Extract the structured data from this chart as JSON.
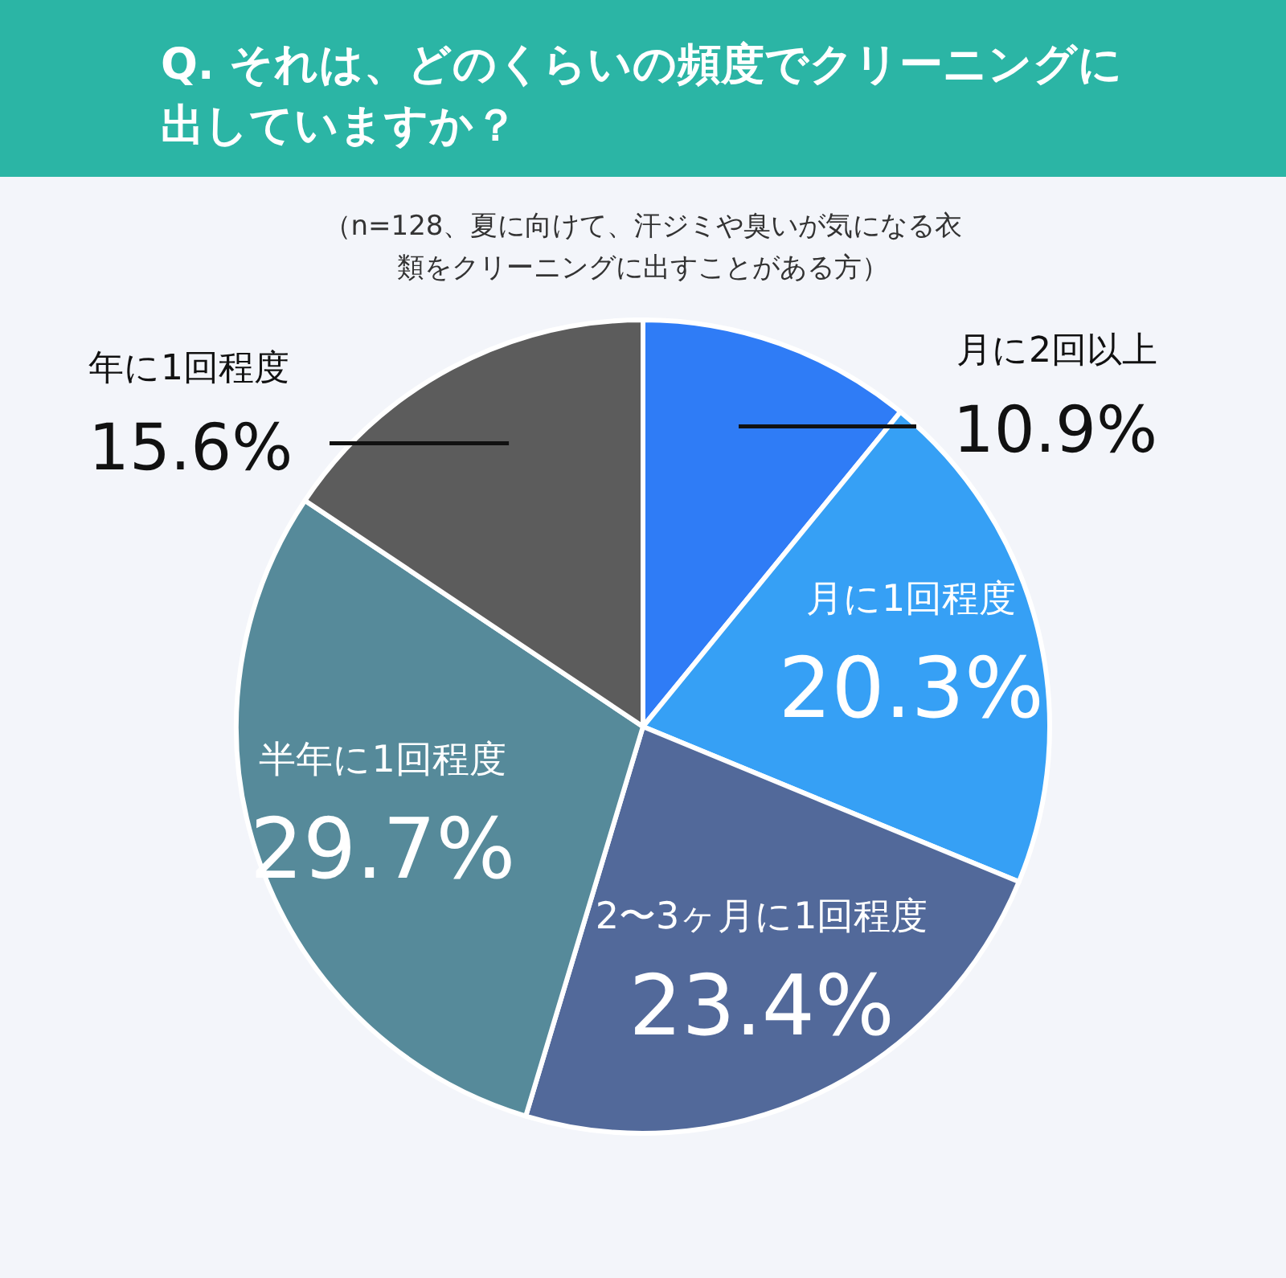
{
  "chart_data": {
    "type": "pie",
    "title": "Q. それは、どのくらいの頻度でクリーニングに出していますか？",
    "subtitle": "（n=128、夏に向けて、汗ジミや臭いが気になる衣類をクリーニングに出すことがある方）",
    "categories": [
      "月に2回以上",
      "月に1回程度",
      "2〜3ヶ月に1回程度",
      "半年に1回程度",
      "年に1回程度"
    ],
    "values": [
      10.9,
      20.3,
      23.4,
      29.7,
      15.6
    ],
    "colors": [
      "#2f7cf6",
      "#36a0f5",
      "#52699a",
      "#568a9a",
      "#5c5c5c"
    ],
    "value_labels": [
      "10.9%",
      "20.3%",
      "23.4%",
      "29.7%",
      "15.6%"
    ]
  }
}
